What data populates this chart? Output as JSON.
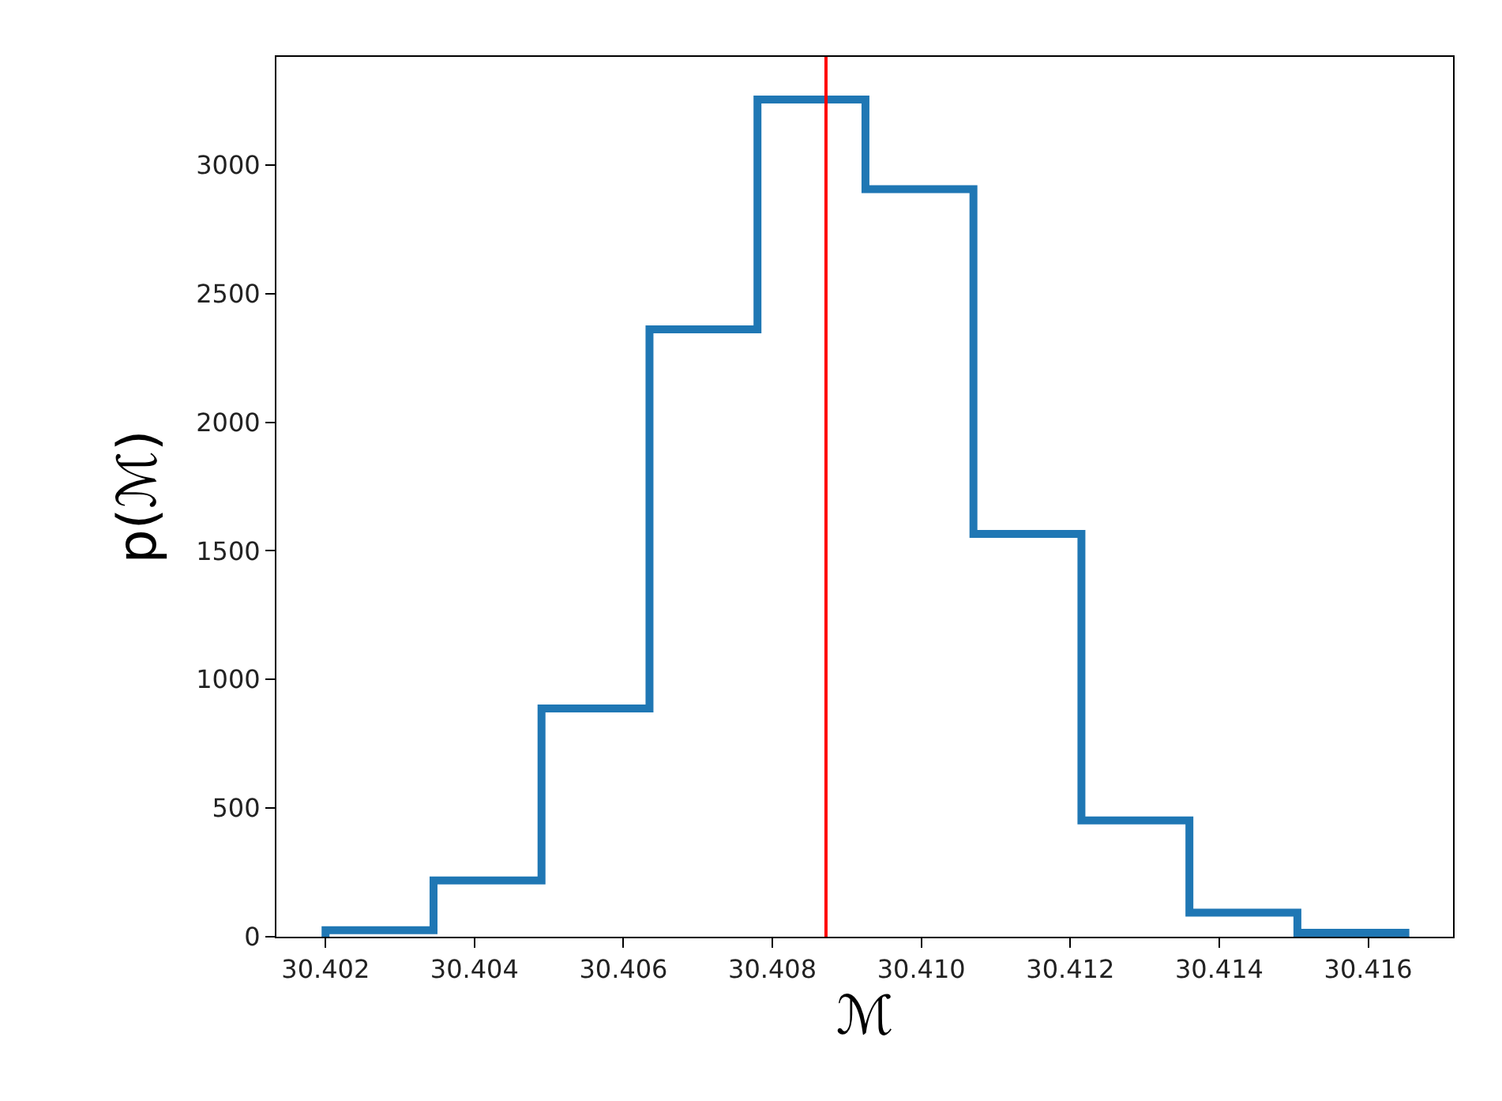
{
  "chart_data": {
    "type": "histogram",
    "xlabel": "ℳ",
    "ylabel": "p(ℳ)",
    "color": "#1f77b4",
    "bins": [
      30.402,
      30.40345,
      30.4049,
      30.40635,
      30.4078,
      30.40925,
      30.4107,
      30.41215,
      30.4136,
      30.41505,
      30.4165
    ],
    "values": [
      25,
      219,
      887,
      2361,
      3254,
      2906,
      1566,
      452,
      94,
      15
    ],
    "xlim": [
      30.40134,
      30.41714
    ],
    "xticks": [
      {
        "value": 30.402,
        "label": "30.402"
      },
      {
        "value": 30.404,
        "label": "30.404"
      },
      {
        "value": 30.406,
        "label": "30.406"
      },
      {
        "value": 30.408,
        "label": "30.408"
      },
      {
        "value": 30.41,
        "label": "30.410"
      },
      {
        "value": 30.412,
        "label": "30.412"
      },
      {
        "value": 30.414,
        "label": "30.414"
      },
      {
        "value": 30.416,
        "label": "30.416"
      }
    ],
    "ylim": [
      0,
      3420
    ],
    "yticks": [
      0,
      500,
      1000,
      1500,
      2000,
      2500,
      3000
    ],
    "ref_lines": [
      {
        "axis": "x",
        "value": 30.40872,
        "color": "#ff0000"
      }
    ]
  }
}
